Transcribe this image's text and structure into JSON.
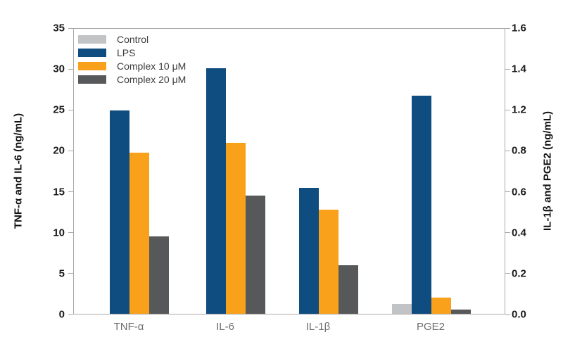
{
  "chart_data": {
    "type": "bar",
    "title": "",
    "grid": false,
    "plot_background": "#ffffff",
    "categories": [
      "TNF-α",
      "IL-6",
      "IL-1β",
      "PGE2"
    ],
    "category_axis": [
      "left",
      "left",
      "right",
      "right"
    ],
    "series": [
      {
        "name": "Control",
        "color": "#c2c3c5",
        "values": [
          0,
          0,
          0,
          0.05
        ]
      },
      {
        "name": "LPS",
        "color": "#0f4c7f",
        "values": [
          25.0,
          30.2,
          0.62,
          1.27
        ]
      },
      {
        "name": "Complex 10 μM",
        "color": "#f9a11b",
        "values": [
          19.8,
          21.0,
          0.51,
          0.08
        ]
      },
      {
        "name": "Complex 20 μM",
        "color": "#57585a",
        "values": [
          9.5,
          14.5,
          0.24,
          0.02
        ]
      }
    ],
    "left_axis": {
      "label": "TNF-α and IL-6 (ng/mL)",
      "tick_values": [
        0,
        5,
        10,
        15,
        20,
        25,
        30,
        35
      ],
      "tick_labels": [
        "0",
        "5",
        "10",
        "15",
        "20",
        "25",
        "30",
        "35"
      ],
      "range": [
        0,
        35
      ]
    },
    "right_axis": {
      "label": "IL-1β and PGE2 (ng/mL)",
      "tick_values": [
        0.0,
        0.2,
        0.4,
        0.6,
        0.8,
        1.2,
        1.4,
        1.6
      ],
      "tick_labels": [
        "0.0",
        "0.2",
        "0.4",
        "0.6",
        "0.8",
        "1.2",
        "1.4",
        "1.6"
      ],
      "range": [
        0.0,
        1.6
      ]
    },
    "legend_position": "top-left-inside",
    "colors": {
      "axis_line": "#a9a9a9",
      "tick_text": "#1a1a1a",
      "category_text": "#6d6e71",
      "legend_text": "#3d3d3d"
    }
  }
}
